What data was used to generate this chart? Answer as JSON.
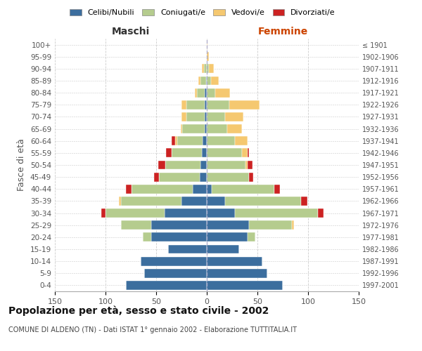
{
  "age_groups": [
    "0-4",
    "5-9",
    "10-14",
    "15-19",
    "20-24",
    "25-29",
    "30-34",
    "35-39",
    "40-44",
    "45-49",
    "50-54",
    "55-59",
    "60-64",
    "65-69",
    "70-74",
    "75-79",
    "80-84",
    "85-89",
    "90-94",
    "95-99",
    "100+"
  ],
  "birth_years": [
    "1997-2001",
    "1992-1996",
    "1987-1991",
    "1982-1986",
    "1977-1981",
    "1972-1976",
    "1967-1971",
    "1962-1966",
    "1957-1961",
    "1952-1956",
    "1947-1951",
    "1942-1946",
    "1937-1941",
    "1932-1936",
    "1927-1931",
    "1922-1926",
    "1917-1921",
    "1912-1916",
    "1907-1911",
    "1902-1906",
    "≤ 1901"
  ],
  "maschi_celibi": [
    80,
    62,
    65,
    38,
    55,
    55,
    42,
    25,
    14,
    7,
    6,
    5,
    4,
    2,
    2,
    2,
    2,
    1,
    0,
    0,
    0
  ],
  "maschi_coniugati": [
    0,
    0,
    0,
    0,
    8,
    30,
    58,
    60,
    60,
    40,
    35,
    30,
    25,
    22,
    18,
    18,
    8,
    5,
    3,
    0,
    0
  ],
  "maschi_vedovi": [
    0,
    0,
    0,
    0,
    0,
    0,
    0,
    2,
    0,
    0,
    0,
    0,
    2,
    2,
    5,
    5,
    2,
    2,
    2,
    0,
    0
  ],
  "maschi_divorziati": [
    0,
    0,
    0,
    0,
    0,
    0,
    4,
    0,
    6,
    5,
    7,
    5,
    4,
    0,
    0,
    0,
    0,
    0,
    0,
    0,
    0
  ],
  "femmine_celibi": [
    75,
    60,
    55,
    32,
    40,
    42,
    28,
    18,
    5,
    0,
    0,
    0,
    0,
    0,
    0,
    0,
    0,
    0,
    0,
    0,
    0
  ],
  "femmine_coniugati": [
    0,
    0,
    0,
    0,
    8,
    42,
    82,
    75,
    62,
    42,
    38,
    35,
    28,
    20,
    18,
    22,
    8,
    4,
    2,
    0,
    0
  ],
  "femmine_vedovi": [
    0,
    0,
    0,
    0,
    0,
    2,
    0,
    0,
    0,
    0,
    2,
    5,
    12,
    15,
    18,
    30,
    15,
    8,
    5,
    2,
    1
  ],
  "femmine_divorziati": [
    0,
    0,
    0,
    0,
    0,
    0,
    5,
    6,
    5,
    4,
    5,
    2,
    0,
    0,
    0,
    0,
    0,
    0,
    0,
    0,
    0
  ],
  "color_celibi": "#3c6e9e",
  "color_coniugati": "#b5cc8e",
  "color_vedovi": "#f5c870",
  "color_divorziati": "#cc2222",
  "xlim": 150,
  "title": "Popolazione per età, sesso e stato civile - 2002",
  "subtitle": "COMUNE DI ALDENO (TN) - Dati ISTAT 1° gennaio 2002 - Elaborazione TUTTITALIA.IT",
  "ylabel_left": "Fasce di età",
  "xlabel_maschi": "Maschi",
  "xlabel_femmine": "Femmine",
  "bg_color": "#ffffff",
  "grid_color": "#cccccc"
}
